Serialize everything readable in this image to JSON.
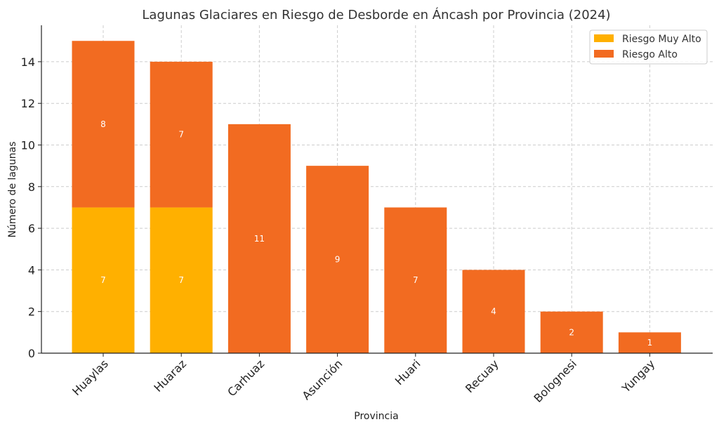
{
  "chart_data": {
    "type": "bar",
    "stacked": true,
    "title": "Lagunas Glaciares en Riesgo de Desborde en Áncash por Provincia (2024)",
    "xlabel": "Provincia",
    "ylabel": "Número de lagunas",
    "ylim": [
      0,
      15.75
    ],
    "yticks": [
      0,
      2,
      4,
      6,
      8,
      10,
      12,
      14
    ],
    "grid": true,
    "legend_position": "top-right",
    "categories": [
      "Huaylas",
      "Huaraz",
      "Carhuaz",
      "Asunción",
      "Huari",
      "Recuay",
      "Bolognesi",
      "Yungay"
    ],
    "series": [
      {
        "name": "Riesgo Muy Alto",
        "color": "#FFB000",
        "values": [
          7,
          7,
          0,
          0,
          0,
          0,
          0,
          0
        ]
      },
      {
        "name": "Riesgo Alto",
        "color": "#F26B21",
        "values": [
          8,
          7,
          11,
          9,
          7,
          4,
          2,
          1
        ]
      }
    ]
  }
}
